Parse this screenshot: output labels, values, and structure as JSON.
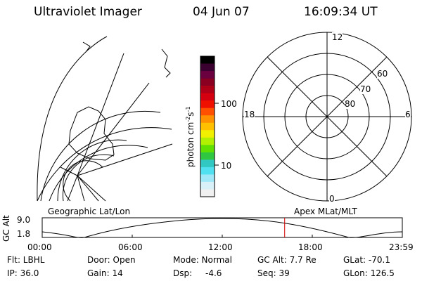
{
  "header": {
    "title": "Ultraviolet Imager",
    "date": "04 Jun 07",
    "time": "16:09:34 UT"
  },
  "colorbar": {
    "unit_prefix": "photon cm",
    "exp1": "-2",
    "mid": "s",
    "exp2": "-1",
    "tick_100": "100",
    "tick_10": "10",
    "colors": [
      "#000000",
      "#3a0030",
      "#6a0040",
      "#8a0020",
      "#b00018",
      "#d40010",
      "#f01000",
      "#ff5000",
      "#ff9000",
      "#ffc000",
      "#f0f000",
      "#b0f000",
      "#60e000",
      "#30c840",
      "#30c8c0",
      "#50e0f0",
      "#a0e8f8",
      "#d8f0f8",
      "#f0f0f0"
    ]
  },
  "left_map": {
    "label": "Geographic Lat/Lon"
  },
  "right_map": {
    "label": "Apex MLat/MLT",
    "mlt_12": "12",
    "mlt_18": "18",
    "mlt_6": "6",
    "mlt_0": "0",
    "lat_60": "60",
    "lat_70": "70",
    "lat_80": "80"
  },
  "timeline": {
    "ylabel": "GC Alt",
    "y_hi": "9.0",
    "y_lo": "1.8",
    "ticks": [
      "00:00",
      "06:00",
      "12:00",
      "18:00",
      "23:59"
    ],
    "marker_fraction": 0.6733
  },
  "info": {
    "flt": "Flt: LBHL",
    "ip": "IP: 36.0",
    "door": "Door: Open",
    "gain": "Gain: 14",
    "mode": "Mode: Normal",
    "dsp_label": "Dsp:",
    "dsp_value": "-4.6",
    "gc_alt": "GC Alt: 7.7 Re",
    "seq": "Seq: 39",
    "glat": "GLat: -70.1",
    "glon": "GLon: 126.5"
  }
}
